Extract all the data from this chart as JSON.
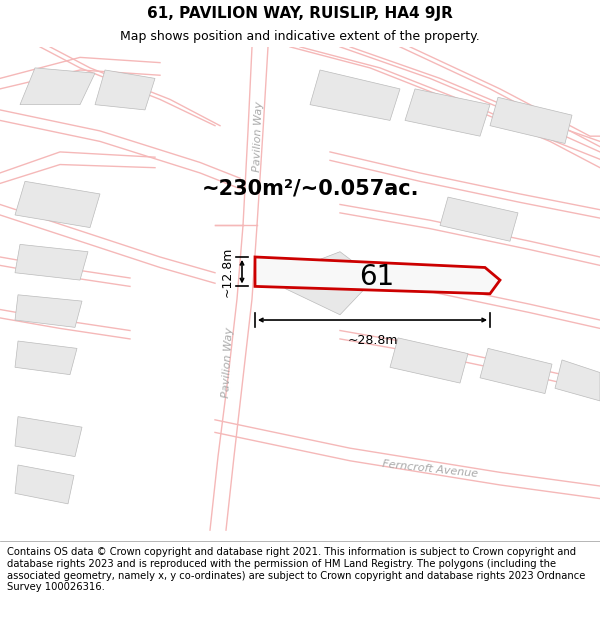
{
  "title": "61, PAVILION WAY, RUISLIP, HA4 9JR",
  "subtitle": "Map shows position and indicative extent of the property.",
  "footer": "Contains OS data © Crown copyright and database right 2021. This information is subject to Crown copyright and database rights 2023 and is reproduced with the permission of HM Land Registry. The polygons (including the associated geometry, namely x, y co-ordinates) are subject to Crown copyright and database rights 2023 Ordnance Survey 100026316.",
  "bg_color": "#ffffff",
  "building_fill": "#e8e8e8",
  "building_edge": "#bbbbbb",
  "road_color": "#f5b8b8",
  "road_lw": 1.0,
  "highlight_color": "#cc0000",
  "highlight_fill": "#f8f8f8",
  "area_text": "~230m²/~0.057ac.",
  "plot_label": "61",
  "dim_width": "~28.8m",
  "dim_height": "~12.8m",
  "road_label_color": "#aaaaaa",
  "title_fontsize": 11,
  "subtitle_fontsize": 9,
  "footer_fontsize": 7.2,
  "area_fontsize": 15,
  "plot_fontsize": 20,
  "dim_fontsize": 9
}
